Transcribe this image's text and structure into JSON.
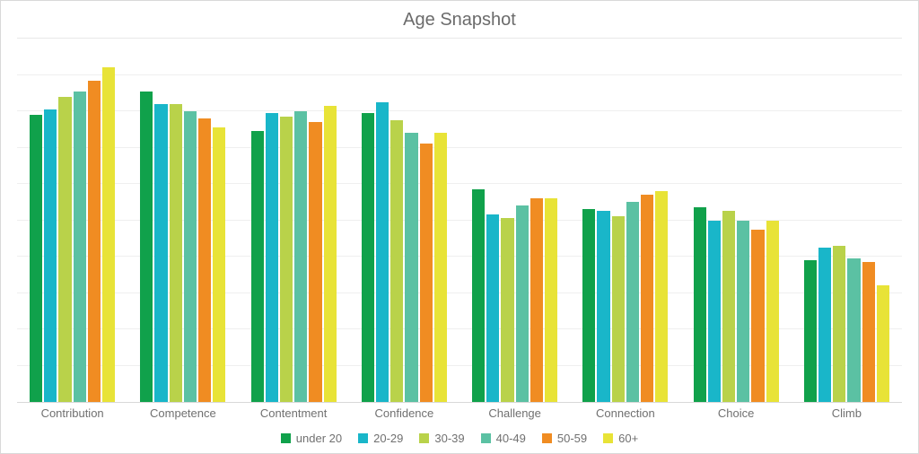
{
  "chart": {
    "type": "bar",
    "title": "Age Snapshot",
    "title_fontsize": 20,
    "title_color": "#6b6b6b",
    "background_color": "#ffffff",
    "border_color": "#d9d9d9",
    "grid_color": "#efefef",
    "axis_line_color": "#d9d9d9",
    "label_color": "#707070",
    "label_fontsize": 13,
    "ylim": [
      0,
      10
    ],
    "ytick_step": 1,
    "gridline_count": 9,
    "categories": [
      "Contribution",
      "Competence",
      "Contentment",
      "Confidence",
      "Challenge",
      "Connection",
      "Choice",
      "Climb"
    ],
    "series": [
      {
        "name": "under 20",
        "color": "#10a14b"
      },
      {
        "name": "20-29",
        "color": "#19b6c9"
      },
      {
        "name": "30-39",
        "color": "#b9d24a"
      },
      {
        "name": "40-49",
        "color": "#5bc1a3"
      },
      {
        "name": "50-59",
        "color": "#f08c22"
      },
      {
        "name": "60+",
        "color": "#e8e337"
      }
    ],
    "values": [
      [
        7.9,
        8.05,
        8.4,
        8.55,
        8.85,
        9.2
      ],
      [
        8.55,
        8.2,
        8.2,
        8.0,
        7.8,
        7.55
      ],
      [
        7.45,
        7.95,
        7.85,
        8.0,
        7.7,
        8.15
      ],
      [
        7.95,
        8.25,
        7.75,
        7.4,
        7.1,
        7.4
      ],
      [
        5.85,
        5.15,
        5.05,
        5.4,
        5.6,
        5.6
      ],
      [
        5.3,
        5.25,
        5.1,
        5.5,
        5.7,
        5.8
      ],
      [
        5.35,
        5.0,
        5.25,
        5.0,
        4.75,
        5.0
      ],
      [
        3.9,
        4.25,
        4.3,
        3.95,
        3.85,
        3.2
      ]
    ]
  }
}
